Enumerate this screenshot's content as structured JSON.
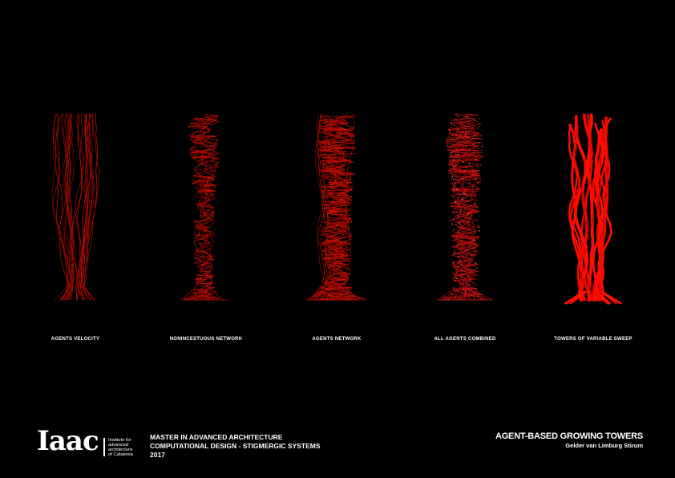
{
  "slide": {
    "background": "#000000",
    "accent_red": "#ff0000",
    "wire_red": "#b00c00",
    "text_color": "#ffffff"
  },
  "towers": [
    {
      "label": "AGENTS VELOCITY"
    },
    {
      "label": "NONINCESTUOUS NETWORK"
    },
    {
      "label": "AGENTS NETWORK"
    },
    {
      "label": "ALL AGENTS COMBINED"
    },
    {
      "label": "TOWERS OF VARIABLE SWEEP"
    }
  ],
  "footer": {
    "logo": {
      "wordmark": "Iaac",
      "sub": [
        "Institute for",
        "advanced",
        "architecture",
        "of Catalonia"
      ]
    },
    "program": {
      "line1": "MASTER IN ADVANCED ARCHITECTURE",
      "line2": "COMPUTATIONAL DESIGN - STIGMERGIC SYSTEMS",
      "year": "2017"
    },
    "project": {
      "title": "AGENT-BASED GROWING TOWERS",
      "author": "Gelder van Limburg Stirum"
    }
  }
}
